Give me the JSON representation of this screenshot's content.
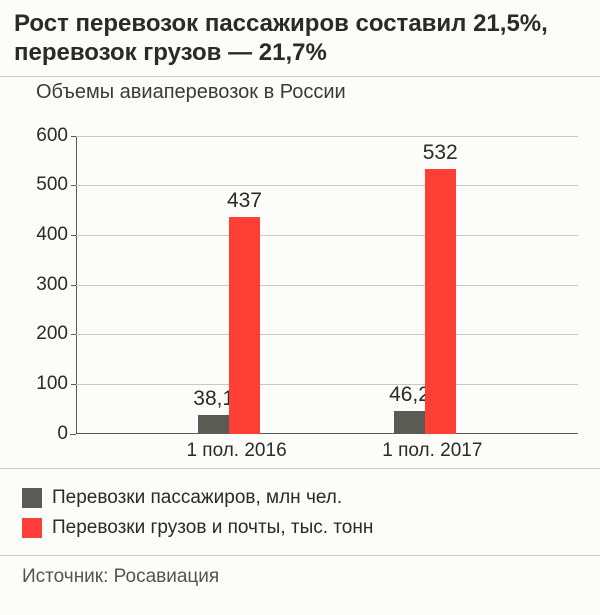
{
  "title": "Рост перевозок пассажиров составил 21,5%, перевозок грузов — 21,7%",
  "title_fontsize": 24,
  "title_color": "#2a2a28",
  "subtitle": "Объемы авиаперевозок в России",
  "subtitle_fontsize": 20,
  "subtitle_color": "#3a3a36",
  "background_color": "#fcfcfa",
  "divider_color": "#c9c9c0",
  "chart": {
    "type": "bar",
    "ylim": [
      0,
      600
    ],
    "ytick_step": 100,
    "yticks": [
      "0",
      "100",
      "200",
      "300",
      "400",
      "500",
      "600"
    ],
    "ytick_fontsize": 19,
    "grid_color": "#c9c9c0",
    "axis_color": "#5b5b55",
    "categories": [
      "1 пол. 2016",
      "1 пол. 2017"
    ],
    "xtick_fontsize": 19,
    "series": [
      {
        "name": "Перевозки пассажиров, млн чел.",
        "color": "#5b5b55",
        "values": [
          38.1,
          46.2
        ],
        "labels": [
          "38,1",
          "46,2"
        ]
      },
      {
        "name": "Перевозки грузов и почты, тыс. тонн",
        "color": "#fd3f36",
        "values": [
          437,
          532
        ],
        "labels": [
          "437",
          "532"
        ]
      }
    ],
    "bar_label_fontsize": 21,
    "group_gap_ratio": 0.22,
    "bar_gap_ratio": 0.0,
    "bar_width_ratio": 0.36
  },
  "legend": {
    "items": [
      {
        "color": "#5b5b55",
        "label": "Перевозки пассажиров, млн чел."
      },
      {
        "color": "#fd3f36",
        "label": "Перевозки грузов и почты, тыс. тонн"
      }
    ],
    "fontsize": 19
  },
  "source": "Источник: Росавиация",
  "source_fontsize": 19,
  "source_color": "#55554f"
}
